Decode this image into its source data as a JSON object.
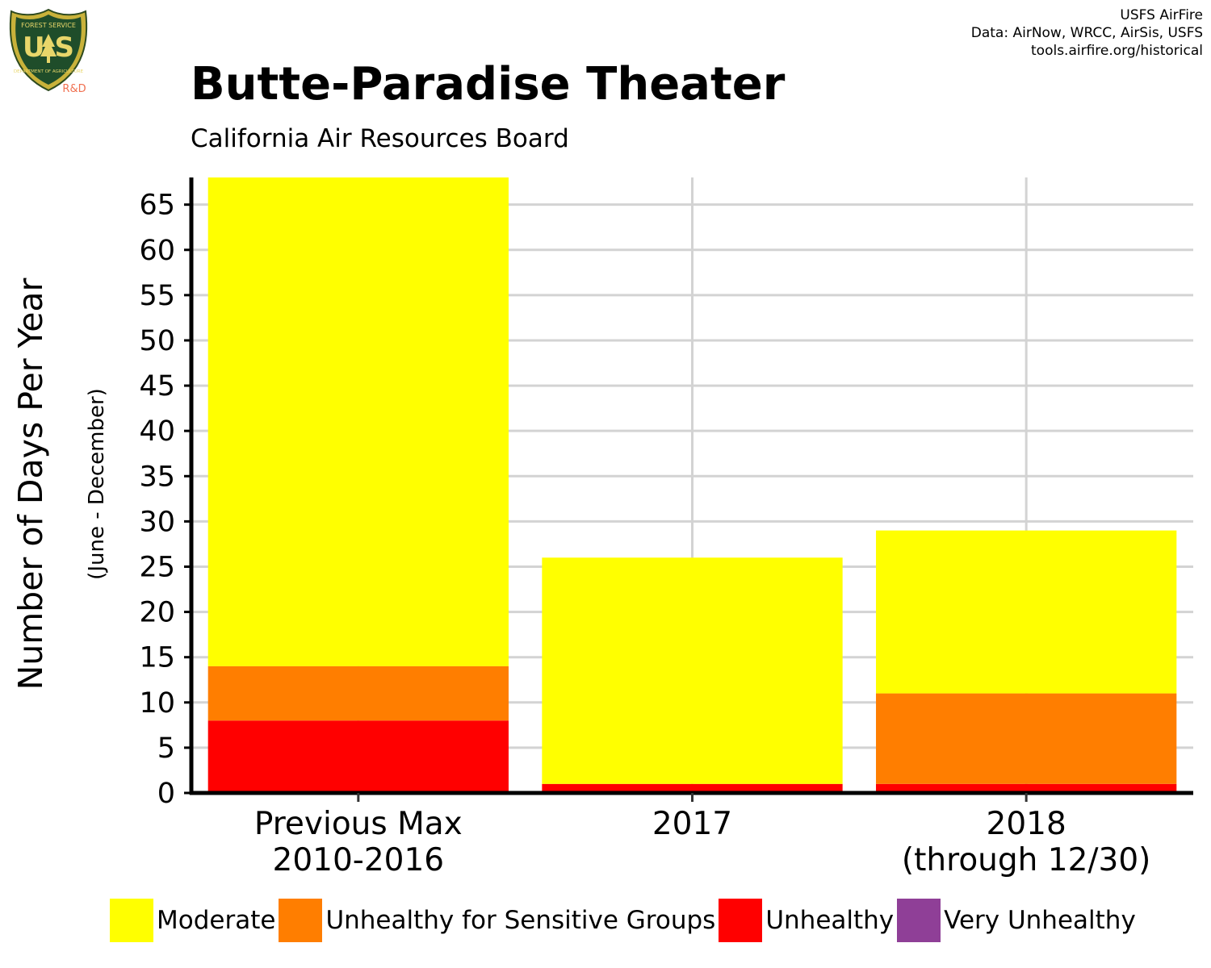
{
  "logo": {
    "top_text": "FOREST SERVICE",
    "letters": "U S",
    "bottom_text": "DEPARTMENT OF AGRICULTURE",
    "tag": "R&D"
  },
  "credits": {
    "line1": "USFS AirFire",
    "line2": "Data: AirNow, WRCC, AirSis, USFS",
    "line3": "tools.airfire.org/historical"
  },
  "header": {
    "title": "Butte-Paradise Theater",
    "subtitle": "California Air Resources Board"
  },
  "colors": {
    "moderate": "#FFFF00",
    "usg": "#FF7E00",
    "unhealthy": "#FF0000",
    "very_unhealthy": "#8F3F97",
    "grid": "#D3D3D3",
    "axis": "#000000"
  },
  "chart_data": {
    "type": "bar",
    "stacked": true,
    "title": "Butte-Paradise Theater",
    "subtitle": "California Air Resources Board",
    "ylabel": "Number of Days Per Year",
    "ylabel_sub": "(June - December)",
    "xlabel": "",
    "ylim": [
      0,
      68
    ],
    "yticks": [
      0,
      5,
      10,
      15,
      20,
      25,
      30,
      35,
      40,
      45,
      50,
      55,
      60,
      65
    ],
    "grid": true,
    "legend_position": "bottom",
    "categories": [
      [
        "Previous Max",
        "2010-2016"
      ],
      [
        "2017"
      ],
      [
        "2018",
        "(through 12/30)"
      ]
    ],
    "series": [
      {
        "name": "Moderate",
        "color": "#FFFF00",
        "values": [
          54,
          25,
          18
        ]
      },
      {
        "name": "Unhealthy for Sensitive Groups",
        "color": "#FF7E00",
        "values": [
          6,
          0,
          10
        ]
      },
      {
        "name": "Unhealthy",
        "color": "#FF0000",
        "values": [
          8,
          1,
          1
        ]
      },
      {
        "name": "Very Unhealthy",
        "color": "#8F3F97",
        "values": [
          0,
          0,
          0
        ]
      }
    ]
  }
}
